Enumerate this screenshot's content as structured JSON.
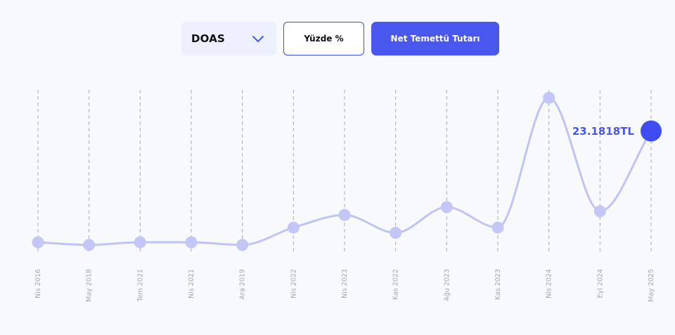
{
  "controls": {
    "ticker": "DOAS",
    "percent_label": "Yüzde %",
    "net_label": "Net Temettü Tutarı"
  },
  "icons": {
    "ticker_dropdown": "chevron-down-icon"
  },
  "colors": {
    "accent": "#4a57ee",
    "line": "#bfc3f5",
    "point": "#c3c6f6",
    "last_point": "#3f4cf2",
    "select_bg": "#eceffc",
    "gridline": "#a9abb4",
    "tick_text": "#a7a7ad",
    "background": "#f8f9fc"
  },
  "chart_data": {
    "type": "line",
    "categories": [
      "Nis 2016",
      "May 2018",
      "Tem 2021",
      "Nis 2021",
      "Ara 2019",
      "Nis 2022",
      "Nis 2023",
      "Kas 2022",
      "Ağu 2023",
      "Kas 2023",
      "Nis 2024",
      "Eyl 2024",
      "May 2025"
    ],
    "values": [
      2.0,
      1.5,
      2.0,
      2.0,
      1.5,
      4.8,
      7.2,
      3.8,
      8.7,
      4.8,
      29.5,
      7.9,
      23.1818
    ],
    "last_value_label": "23.1818TL",
    "ylim": [
      0,
      31
    ],
    "grid": true,
    "smooth": true
  }
}
